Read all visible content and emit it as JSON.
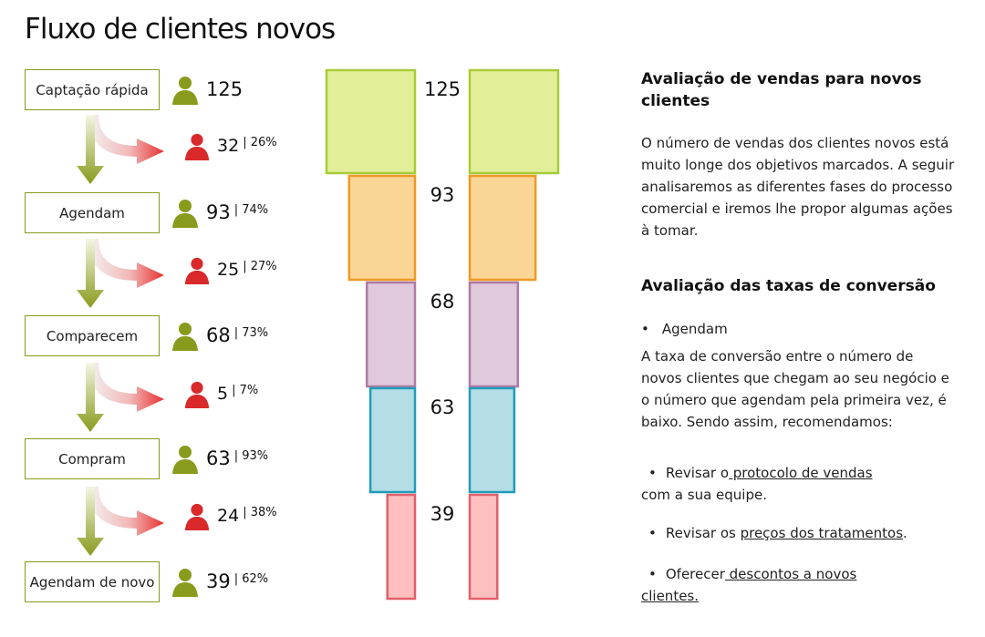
{
  "title": "Fluxo de clientes novos",
  "colors": {
    "stage_border": "#8a9a1c",
    "person_green": "#8a9a1c",
    "person_red": "#d9292b",
    "arrow_red": "#e5322f",
    "arrow_green": "#8a9a1c"
  },
  "stages": [
    {
      "label": "Captação rápida",
      "count": "125",
      "pct": ""
    },
    {
      "label": "Agendam",
      "count": "93",
      "pct": "| 74%"
    },
    {
      "label": "Comparecem",
      "count": "68",
      "pct": "| 73%"
    },
    {
      "label": "Compram",
      "count": "63",
      "pct": "| 93%"
    },
    {
      "label": "Agendam de novo",
      "count": "39",
      "pct": "| 62%"
    }
  ],
  "losses": [
    {
      "count": "32",
      "pct": "| 26%"
    },
    {
      "count": "25",
      "pct": "| 27%"
    },
    {
      "count": "5",
      "pct": "| 7%"
    },
    {
      "count": "24",
      "pct": "| 38%"
    }
  ],
  "chart_data": {
    "type": "bar",
    "orientation": "horizontal-mirrored-funnel",
    "categories": [
      "Captação rápida",
      "Agendam",
      "Comparecem",
      "Compram",
      "Agendam de novo"
    ],
    "values": [
      125,
      93,
      68,
      63,
      39
    ],
    "colors": [
      {
        "fill": "#e2ef98",
        "stroke": "#a8cc3a"
      },
      {
        "fill": "#fbd595",
        "stroke": "#ec9a25"
      },
      {
        "fill": "#e1c9dc",
        "stroke": "#b07aa6"
      },
      {
        "fill": "#b4dde6",
        "stroke": "#1f9cba"
      },
      {
        "fill": "#ffbfbf",
        "stroke": "#e0606a"
      }
    ]
  },
  "right_panel": {
    "heading1": "Avaliação de vendas para novos clientes",
    "para1": "O número de vendas dos clientes novos está muito longe dos objetivos marcados. A seguir analisaremos as  diferentes fases do processo comercial e iremos lhe propor algumas ações à tomar.",
    "heading2": "Avaliação das taxas de conversão",
    "bullet": "Agendam",
    "para2": "A taxa de conversão entre o número de novos clientes que chegam ao seu negócio e o número que agendam pela primeira vez, é baixo. Sendo assim, recomendamos:",
    "rec1_pre": "Revisar o",
    "rec1_link": " protocolo de vendas",
    "rec1_post": "com a sua equipe.",
    "rec2_pre": "Revisar os ",
    "rec2_link": "preços dos tratamentos",
    "rec2_post": ".",
    "rec3_pre": "Oferecer",
    "rec3_link1": " descontos a novos ",
    "rec3_link2": "clientes."
  }
}
